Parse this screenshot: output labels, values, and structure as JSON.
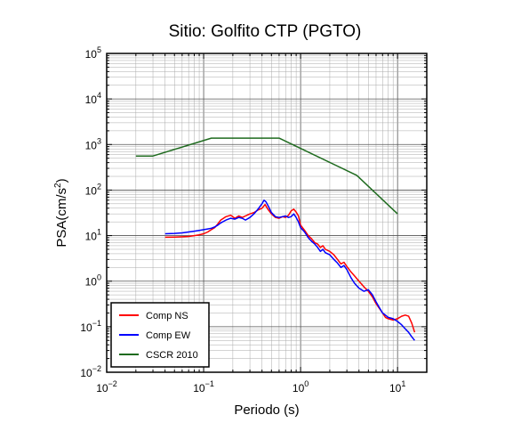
{
  "chart_data": {
    "type": "line",
    "title": "Sitio: Golfito CTP (PGTO)",
    "xlabel": "Periodo (s)",
    "ylabel_base": "PSA(cm/s",
    "ylabel_sup": "2",
    "ylabel_end": ")",
    "xscale": "log",
    "yscale": "log",
    "xlim": [
      0.01,
      20
    ],
    "ylim": [
      0.01,
      100000
    ],
    "grid": true,
    "legend_position": "bottom-left",
    "x_ticks": [
      {
        "base": "10",
        "exp": "−2",
        "value": 0.01
      },
      {
        "base": "10",
        "exp": "−1",
        "value": 0.1
      },
      {
        "base": "10",
        "exp": "0",
        "value": 1
      },
      {
        "base": "10",
        "exp": "1",
        "value": 10
      }
    ],
    "y_ticks": [
      {
        "base": "10",
        "exp": "−2",
        "value": 0.01
      },
      {
        "base": "10",
        "exp": "−1",
        "value": 0.1
      },
      {
        "base": "10",
        "exp": "0",
        "value": 1
      },
      {
        "base": "10",
        "exp": "1",
        "value": 10
      },
      {
        "base": "10",
        "exp": "2",
        "value": 100
      },
      {
        "base": "10",
        "exp": "3",
        "value": 1000
      },
      {
        "base": "10",
        "exp": "4",
        "value": 10000
      },
      {
        "base": "10",
        "exp": "5",
        "value": 100000
      }
    ],
    "series": [
      {
        "name": "Comp NS",
        "color": "#ff0000",
        "points": [
          [
            0.04,
            9.2
          ],
          [
            0.05,
            9.3
          ],
          [
            0.06,
            9.4
          ],
          [
            0.07,
            9.6
          ],
          [
            0.08,
            10
          ],
          [
            0.09,
            10.4
          ],
          [
            0.1,
            11
          ],
          [
            0.11,
            12
          ],
          [
            0.12,
            13.5
          ],
          [
            0.13,
            15
          ],
          [
            0.14,
            18
          ],
          [
            0.15,
            22
          ],
          [
            0.17,
            26
          ],
          [
            0.19,
            28
          ],
          [
            0.21,
            24
          ],
          [
            0.23,
            27
          ],
          [
            0.25,
            25
          ],
          [
            0.27,
            27
          ],
          [
            0.3,
            30
          ],
          [
            0.33,
            32
          ],
          [
            0.36,
            36
          ],
          [
            0.4,
            40
          ],
          [
            0.43,
            48
          ],
          [
            0.46,
            38
          ],
          [
            0.5,
            30
          ],
          [
            0.55,
            25
          ],
          [
            0.6,
            24
          ],
          [
            0.65,
            26
          ],
          [
            0.7,
            25
          ],
          [
            0.75,
            28
          ],
          [
            0.8,
            35
          ],
          [
            0.85,
            38
          ],
          [
            0.9,
            33
          ],
          [
            0.95,
            27
          ],
          [
            1.0,
            17
          ],
          [
            1.1,
            13
          ],
          [
            1.2,
            10
          ],
          [
            1.3,
            8.5
          ],
          [
            1.4,
            7
          ],
          [
            1.5,
            6.5
          ],
          [
            1.6,
            5.5
          ],
          [
            1.7,
            6
          ],
          [
            1.8,
            5
          ],
          [
            2.0,
            4.5
          ],
          [
            2.2,
            3.8
          ],
          [
            2.4,
            3
          ],
          [
            2.6,
            2.4
          ],
          [
            2.8,
            2.6
          ],
          [
            3.0,
            2.1
          ],
          [
            3.3,
            1.6
          ],
          [
            3.6,
            1.3
          ],
          [
            4.0,
            1.0
          ],
          [
            4.5,
            0.75
          ],
          [
            5.0,
            0.6
          ],
          [
            5.5,
            0.45
          ],
          [
            6.0,
            0.32
          ],
          [
            6.5,
            0.25
          ],
          [
            7.0,
            0.2
          ],
          [
            7.5,
            0.16
          ],
          [
            8.0,
            0.15
          ],
          [
            9.0,
            0.14
          ],
          [
            10,
            0.15
          ],
          [
            11,
            0.17
          ],
          [
            12,
            0.18
          ],
          [
            13,
            0.17
          ],
          [
            14,
            0.12
          ],
          [
            15,
            0.075
          ]
        ]
      },
      {
        "name": "Comp EW",
        "color": "#0000ff",
        "points": [
          [
            0.04,
            11
          ],
          [
            0.05,
            11.2
          ],
          [
            0.06,
            11.5
          ],
          [
            0.07,
            12
          ],
          [
            0.08,
            12.5
          ],
          [
            0.09,
            13
          ],
          [
            0.1,
            13.5
          ],
          [
            0.11,
            14
          ],
          [
            0.12,
            14.5
          ],
          [
            0.13,
            15.5
          ],
          [
            0.14,
            17
          ],
          [
            0.15,
            19
          ],
          [
            0.17,
            22
          ],
          [
            0.19,
            24
          ],
          [
            0.21,
            23
          ],
          [
            0.23,
            25
          ],
          [
            0.25,
            24
          ],
          [
            0.27,
            22
          ],
          [
            0.3,
            25
          ],
          [
            0.33,
            30
          ],
          [
            0.36,
            37
          ],
          [
            0.4,
            50
          ],
          [
            0.42,
            60
          ],
          [
            0.44,
            55
          ],
          [
            0.47,
            42
          ],
          [
            0.5,
            32
          ],
          [
            0.55,
            26
          ],
          [
            0.6,
            25
          ],
          [
            0.65,
            26
          ],
          [
            0.7,
            27
          ],
          [
            0.75,
            25
          ],
          [
            0.8,
            26
          ],
          [
            0.85,
            30
          ],
          [
            0.9,
            25
          ],
          [
            0.95,
            20
          ],
          [
            1.0,
            15
          ],
          [
            1.1,
            12
          ],
          [
            1.2,
            9
          ],
          [
            1.3,
            7.5
          ],
          [
            1.4,
            6.5
          ],
          [
            1.5,
            5.5
          ],
          [
            1.6,
            4.5
          ],
          [
            1.7,
            5
          ],
          [
            1.8,
            4.2
          ],
          [
            2.0,
            3.8
          ],
          [
            2.2,
            3
          ],
          [
            2.4,
            2.5
          ],
          [
            2.6,
            2
          ],
          [
            2.8,
            2.2
          ],
          [
            3.0,
            1.8
          ],
          [
            3.3,
            1.2
          ],
          [
            3.6,
            0.9
          ],
          [
            4.0,
            0.7
          ],
          [
            4.5,
            0.6
          ],
          [
            5.0,
            0.65
          ],
          [
            5.5,
            0.5
          ],
          [
            6.0,
            0.35
          ],
          [
            6.5,
            0.26
          ],
          [
            7.0,
            0.2
          ],
          [
            7.5,
            0.18
          ],
          [
            8.0,
            0.16
          ],
          [
            9.0,
            0.15
          ],
          [
            10,
            0.13
          ],
          [
            11,
            0.11
          ],
          [
            12,
            0.09
          ],
          [
            13,
            0.075
          ],
          [
            14,
            0.06
          ],
          [
            15,
            0.05
          ]
        ]
      },
      {
        "name": "CSCR 2010",
        "color": "#1f6b1f",
        "points": [
          [
            0.02,
            560
          ],
          [
            0.03,
            560
          ],
          [
            0.12,
            1380
          ],
          [
            0.6,
            1380
          ],
          [
            3.8,
            210
          ],
          [
            10,
            30
          ]
        ]
      }
    ]
  }
}
